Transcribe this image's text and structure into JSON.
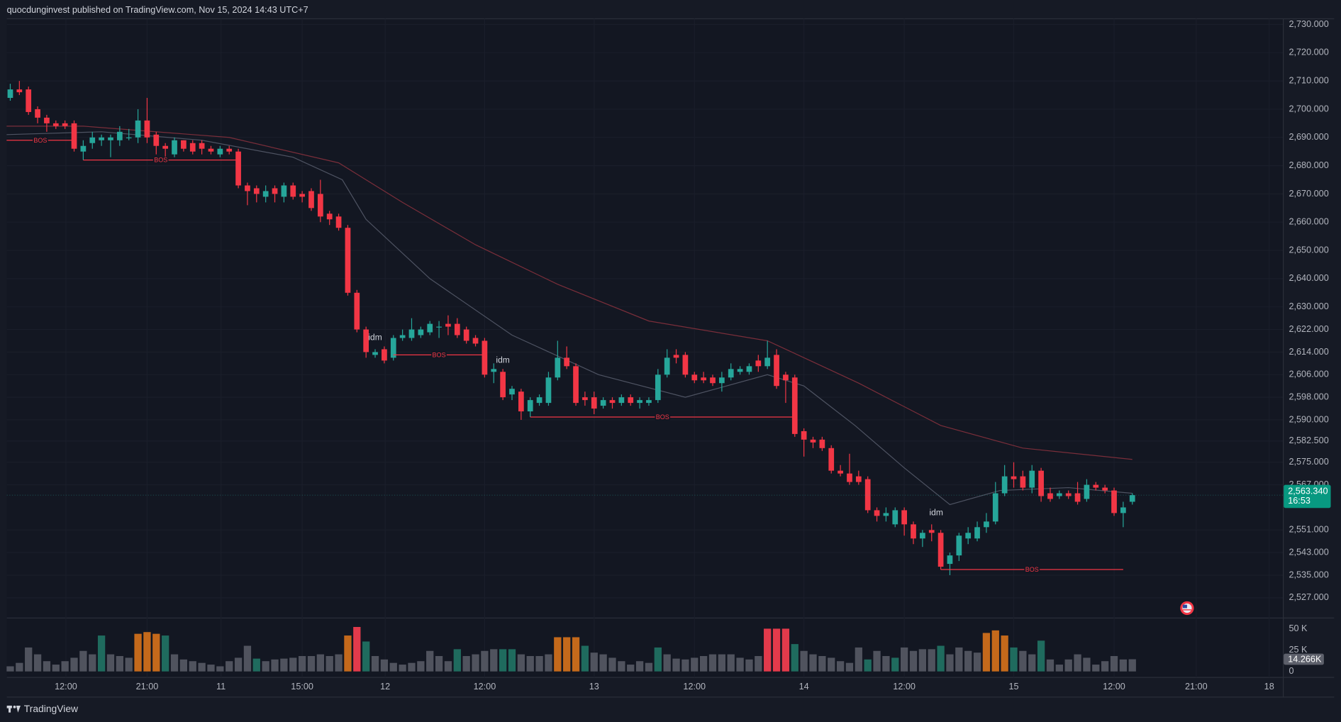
{
  "chart_data": {
    "type": "candlestick",
    "header": "quocdunginvest published on TradingView.com, Nov 15, 2024 14:43 UTC+7",
    "brand": "TradingView",
    "up_color": "#26a69a",
    "down_color": "#f23645",
    "xlim": [
      -0.375,
      139.5
    ],
    "ylim": [
      2520,
      2732
    ],
    "grid": true,
    "yticks": [
      {
        "value": 2730,
        "label": "2,730.000"
      },
      {
        "value": 2720,
        "label": "2,720.000"
      },
      {
        "value": 2710,
        "label": "2,710.000"
      },
      {
        "value": 2700,
        "label": "2,700.000"
      },
      {
        "value": 2690,
        "label": "2,690.000"
      },
      {
        "value": 2680,
        "label": "2,680.000"
      },
      {
        "value": 2670,
        "label": "2,670.000"
      },
      {
        "value": 2660,
        "label": "2,660.000"
      },
      {
        "value": 2650,
        "label": "2,650.000"
      },
      {
        "value": 2640,
        "label": "2,640.000"
      },
      {
        "value": 2630,
        "label": "2,630.000"
      },
      {
        "value": 2622,
        "label": "2,622.000"
      },
      {
        "value": 2614,
        "label": "2,614.000"
      },
      {
        "value": 2606,
        "label": "2,606.000"
      },
      {
        "value": 2598,
        "label": "2,598.000"
      },
      {
        "value": 2590,
        "label": "2,590.000"
      },
      {
        "value": 2582.5,
        "label": "2,582.500"
      },
      {
        "value": 2575,
        "label": "2,575.000"
      },
      {
        "value": 2567,
        "label": "2,567.000"
      },
      {
        "value": 2551,
        "label": "2,551.000"
      },
      {
        "value": 2543,
        "label": "2,543.000"
      },
      {
        "value": 2535,
        "label": "2,535.000"
      },
      {
        "value": 2527,
        "label": "2,527.000"
      }
    ],
    "xticks": [
      {
        "value": 6.1,
        "label": "12:00"
      },
      {
        "value": 15,
        "label": "21:00"
      },
      {
        "value": 23.1,
        "label": "11"
      },
      {
        "value": 32,
        "label": "15:00"
      },
      {
        "value": 41.1,
        "label": "12"
      },
      {
        "value": 52,
        "label": "12:00"
      },
      {
        "value": 64,
        "label": "13"
      },
      {
        "value": 75,
        "label": "12:00"
      },
      {
        "value": 87,
        "label": "14"
      },
      {
        "value": 98,
        "label": "12:00"
      },
      {
        "value": 110,
        "label": "15"
      },
      {
        "value": 121,
        "label": "12:00"
      },
      {
        "value": 130,
        "label": "21:00"
      },
      {
        "value": 138,
        "label": "18"
      }
    ],
    "ohlc": [
      [
        2704,
        2709,
        2703,
        2707
      ],
      [
        2707,
        2710,
        2705,
        2706
      ],
      [
        2707,
        2708,
        2698,
        2699
      ],
      [
        2700,
        2701,
        2695,
        2697
      ],
      [
        2697,
        2698,
        2692,
        2695
      ],
      [
        2695,
        2696,
        2693,
        2694
      ],
      [
        2695,
        2696,
        2693,
        2694
      ],
      [
        2695,
        2696,
        2685,
        2686
      ],
      [
        2685,
        2689,
        2682,
        2687
      ],
      [
        2688,
        2692,
        2686,
        2690
      ],
      [
        2689,
        2691,
        2687,
        2690
      ],
      [
        2689,
        2691,
        2683,
        2690
      ],
      [
        2689,
        2694,
        2687,
        2692
      ],
      [
        2690,
        2693,
        2689,
        2690
      ],
      [
        2690,
        2700,
        2688,
        2696
      ],
      [
        2696,
        2704,
        2688,
        2690
      ],
      [
        2691,
        2692,
        2684,
        2687
      ],
      [
        2687,
        2688,
        2682,
        2686
      ],
      [
        2684,
        2690,
        2683,
        2689
      ],
      [
        2689,
        2689,
        2685,
        2686
      ],
      [
        2688,
        2689,
        2684,
        2685
      ],
      [
        2688,
        2689,
        2684,
        2686
      ],
      [
        2686,
        2687,
        2684,
        2685
      ],
      [
        2684,
        2687,
        2683,
        2686
      ],
      [
        2686,
        2687,
        2684,
        2685
      ],
      [
        2685,
        2686,
        2672,
        2673
      ],
      [
        2673,
        2674,
        2666,
        2671
      ],
      [
        2672,
        2673,
        2667,
        2670
      ],
      [
        2669,
        2673,
        2667,
        2671
      ],
      [
        2672,
        2673,
        2667,
        2670
      ],
      [
        2669,
        2674,
        2667,
        2673
      ],
      [
        2673,
        2674,
        2668,
        2669
      ],
      [
        2670,
        2671,
        2667,
        2669
      ],
      [
        2671,
        2672,
        2664,
        2665
      ],
      [
        2670,
        2675,
        2660,
        2662
      ],
      [
        2663,
        2664,
        2659,
        2661
      ],
      [
        2662,
        2663,
        2657,
        2658
      ],
      [
        2658,
        2659,
        2634,
        2635
      ],
      [
        2635,
        2636,
        2621,
        2622
      ],
      [
        2622,
        2623,
        2612,
        2614
      ],
      [
        2613,
        2615,
        2612,
        2614
      ],
      [
        2615,
        2616,
        2610,
        2611
      ],
      [
        2612,
        2620,
        2611,
        2619
      ],
      [
        2619,
        2622,
        2618,
        2620
      ],
      [
        2619,
        2626,
        2618,
        2622
      ],
      [
        2620,
        2623,
        2619,
        2622
      ],
      [
        2621,
        2625,
        2620,
        2624
      ],
      [
        2623,
        2625,
        2619,
        2623
      ],
      [
        2624,
        2627,
        2620,
        2623
      ],
      [
        2624,
        2626,
        2619,
        2620
      ],
      [
        2622,
        2623,
        2617,
        2618
      ],
      [
        2619,
        2620,
        2616,
        2617
      ],
      [
        2618,
        2619,
        2605,
        2606
      ],
      [
        2607,
        2610,
        2603,
        2608
      ],
      [
        2607,
        2608,
        2597,
        2598
      ],
      [
        2599,
        2602,
        2597,
        2601
      ],
      [
        2600,
        2601,
        2590,
        2593
      ],
      [
        2593,
        2598,
        2591,
        2597
      ],
      [
        2596,
        2599,
        2595,
        2598
      ],
      [
        2596,
        2607,
        2595,
        2605
      ],
      [
        2605,
        2618,
        2604,
        2612
      ],
      [
        2612,
        2616,
        2608,
        2609
      ],
      [
        2609,
        2610,
        2595,
        2596
      ],
      [
        2598,
        2600,
        2595,
        2597
      ],
      [
        2598,
        2600,
        2592,
        2594
      ],
      [
        2595,
        2598,
        2594,
        2597
      ],
      [
        2597,
        2598,
        2594,
        2596
      ],
      [
        2596,
        2599,
        2595,
        2598
      ],
      [
        2598,
        2599,
        2595,
        2596
      ],
      [
        2596,
        2598,
        2594,
        2597
      ],
      [
        2596,
        2598,
        2595,
        2597
      ],
      [
        2597,
        2608,
        2596,
        2606
      ],
      [
        2606,
        2615,
        2605,
        2612
      ],
      [
        2613,
        2615,
        2610,
        2612
      ],
      [
        2613,
        2614,
        2605,
        2606
      ],
      [
        2606,
        2607,
        2603,
        2604
      ],
      [
        2605,
        2607,
        2603,
        2604
      ],
      [
        2605,
        2606,
        2602,
        2603
      ],
      [
        2603,
        2607,
        2600,
        2605
      ],
      [
        2605,
        2610,
        2604,
        2608
      ],
      [
        2607,
        2609,
        2606,
        2608
      ],
      [
        2607,
        2610,
        2606,
        2609
      ],
      [
        2611,
        2613,
        2607,
        2609
      ],
      [
        2609,
        2618,
        2608,
        2612
      ],
      [
        2613,
        2615,
        2601,
        2602
      ],
      [
        2606,
        2607,
        2596,
        2604
      ],
      [
        2605,
        2606,
        2584,
        2585
      ],
      [
        2586,
        2587,
        2577,
        2583
      ],
      [
        2583,
        2584,
        2580,
        2582
      ],
      [
        2583,
        2584,
        2579,
        2580
      ],
      [
        2580,
        2581,
        2571,
        2572
      ],
      [
        2572,
        2574,
        2570,
        2571
      ],
      [
        2571,
        2578,
        2567,
        2568
      ],
      [
        2570,
        2572,
        2567,
        2568
      ],
      [
        2569,
        2570,
        2557,
        2558
      ],
      [
        2558,
        2559,
        2554,
        2556
      ],
      [
        2556,
        2559,
        2554,
        2557
      ],
      [
        2553,
        2559,
        2552,
        2558
      ],
      [
        2558,
        2559,
        2549,
        2553
      ],
      [
        2553,
        2554,
        2546,
        2548
      ],
      [
        2548,
        2551,
        2545,
        2550
      ],
      [
        2551,
        2553,
        2547,
        2550
      ],
      [
        2550,
        2551,
        2537,
        2538
      ],
      [
        2539,
        2543,
        2535,
        2542
      ],
      [
        2542,
        2550,
        2540,
        2549
      ],
      [
        2548,
        2552,
        2546,
        2550
      ],
      [
        2548,
        2554,
        2547,
        2552
      ],
      [
        2552,
        2557,
        2550,
        2554
      ],
      [
        2554,
        2568,
        2553,
        2564
      ],
      [
        2564,
        2574,
        2563,
        2570
      ],
      [
        2570,
        2575,
        2566,
        2569
      ],
      [
        2570,
        2572,
        2565,
        2566
      ],
      [
        2566,
        2574,
        2564,
        2572
      ],
      [
        2572,
        2573,
        2561,
        2563
      ],
      [
        2564,
        2566,
        2561,
        2562
      ],
      [
        2563,
        2565,
        2562,
        2564
      ],
      [
        2564,
        2565,
        2562,
        2563
      ],
      [
        2564,
        2568,
        2560,
        2561
      ],
      [
        2562,
        2569,
        2561,
        2567
      ],
      [
        2567,
        2568,
        2565,
        2566
      ],
      [
        2566,
        2567,
        2564,
        2565
      ],
      [
        2565,
        2566,
        2556,
        2557
      ],
      [
        2557,
        2561,
        2552,
        2559
      ],
      [
        2561,
        2564,
        2560,
        2563.34
      ]
    ],
    "overlays": [
      {
        "color": "#7a2e3a",
        "x": [
          -0.4,
          8,
          24,
          36,
          43,
          51,
          60,
          70,
          83,
          93,
          102,
          111,
          123
        ],
        "values": [
          2694,
          2694,
          2690,
          2681,
          2667,
          2652,
          2638,
          2625,
          2618,
          2603,
          2588,
          2580,
          2576
        ]
      },
      {
        "color": "#4e5362",
        "x": [
          -0.4,
          10,
          21,
          31,
          36.4,
          39,
          46,
          55,
          64.5,
          74,
          83,
          87,
          92.6,
          98,
          103,
          108.5,
          116,
          123
        ],
        "values": [
          2691,
          2692,
          2689,
          2683,
          2675,
          2661,
          2640,
          2620,
          2606,
          2598,
          2606,
          2602,
          2588,
          2573,
          2560,
          2565,
          2566,
          2564
        ]
      }
    ],
    "annotations": [
      {
        "text": "BOS",
        "price": 2689,
        "x": [
          -0.4,
          7
        ]
      },
      {
        "text": "BOS",
        "price": 2682,
        "x": [
          8,
          25
        ]
      },
      {
        "text": "BOS",
        "price": 2613,
        "x": [
          42,
          52
        ]
      },
      {
        "text": "BOS",
        "price": 2591,
        "x": [
          57,
          86
        ]
      },
      {
        "text": "BOS",
        "price": 2537,
        "x": [
          102,
          122
        ]
      },
      {
        "text": "idm",
        "price": 2619,
        "x": [
          40
        ]
      },
      {
        "text": "idm",
        "price": 2611,
        "x": [
          54
        ]
      },
      {
        "text": "idm",
        "price": 2557,
        "x": [
          101.5
        ]
      }
    ],
    "annotation_color": "#f23645",
    "last_price": {
      "value": 2563.34,
      "label": "2,563.340"
    },
    "countdown": "16:53",
    "volume": [
      6,
      10,
      28,
      20,
      12,
      8,
      12,
      16,
      24,
      20,
      42,
      20,
      18,
      16,
      44,
      46,
      44,
      42,
      20,
      14,
      12,
      10,
      8,
      6,
      12,
      16,
      30,
      15,
      12,
      14,
      15,
      16,
      18,
      18,
      20,
      18,
      20,
      42,
      52,
      35,
      18,
      14,
      10,
      8,
      10,
      12,
      24,
      18,
      12,
      26,
      18,
      20,
      24,
      26,
      26,
      26,
      20,
      18,
      18,
      20,
      40,
      40,
      40,
      30,
      22,
      20,
      16,
      12,
      8,
      12,
      10,
      28,
      20,
      15,
      14,
      16,
      18,
      20,
      20,
      20,
      16,
      14,
      18,
      50,
      50,
      50,
      32,
      24,
      20,
      18,
      16,
      12,
      10,
      28,
      14,
      24,
      18,
      16,
      28,
      24,
      26,
      26,
      30,
      20,
      28,
      24,
      22,
      45,
      48,
      42,
      28,
      24,
      20,
      36,
      14,
      8,
      14,
      20,
      16,
      8,
      12,
      18,
      14,
      14.266
    ],
    "volume_colors": [
      "#50535e",
      "#50535e",
      "#50535e",
      "#50535e",
      "#50535e",
      "#50535e",
      "#50535e",
      "#50535e",
      "#50535e",
      "#50535e",
      "#1f6b5e",
      "#50535e",
      "#50535e",
      "#50535e",
      "#c4691b",
      "#c4691b",
      "#c4691b",
      "#1f6b5e",
      "#50535e",
      "#50535e",
      "#50535e",
      "#50535e",
      "#50535e",
      "#50535e",
      "#50535e",
      "#50535e",
      "#50535e",
      "#1f6b5e",
      "#50535e",
      "#50535e",
      "#50535e",
      "#50535e",
      "#50535e",
      "#50535e",
      "#50535e",
      "#50535e",
      "#50535e",
      "#c4691b",
      "#e23a4b",
      "#1f6b5e",
      "#50535e",
      "#50535e",
      "#50535e",
      "#50535e",
      "#50535e",
      "#50535e",
      "#50535e",
      "#50535e",
      "#50535e",
      "#1f6b5e",
      "#50535e",
      "#50535e",
      "#50535e",
      "#50535e",
      "#1f6b5e",
      "#1f6b5e",
      "#50535e",
      "#50535e",
      "#50535e",
      "#50535e",
      "#c4691b",
      "#c4691b",
      "#c4691b",
      "#1f6b5e",
      "#50535e",
      "#50535e",
      "#50535e",
      "#50535e",
      "#50535e",
      "#50535e",
      "#50535e",
      "#1f6b5e",
      "#50535e",
      "#50535e",
      "#50535e",
      "#50535e",
      "#50535e",
      "#50535e",
      "#50535e",
      "#50535e",
      "#50535e",
      "#50535e",
      "#50535e",
      "#e23a4b",
      "#e23a4b",
      "#e23a4b",
      "#1f6b5e",
      "#50535e",
      "#50535e",
      "#50535e",
      "#50535e",
      "#50535e",
      "#50535e",
      "#50535e",
      "#1f6b5e",
      "#50535e",
      "#50535e",
      "#1f6b5e",
      "#50535e",
      "#50535e",
      "#50535e",
      "#50535e",
      "#1f6b5e",
      "#50535e",
      "#50535e",
      "#50535e",
      "#50535e",
      "#c4691b",
      "#c4691b",
      "#c4691b",
      "#1f6b5e",
      "#50535e",
      "#50535e",
      "#1f6b5e",
      "#50535e",
      "#50535e",
      "#50535e",
      "#50535e",
      "#50535e",
      "#50535e",
      "#50535e",
      "#50535e",
      "#50535e",
      "#50535e"
    ],
    "volume_ylim": [
      0,
      62
    ],
    "volume_ticks": [
      {
        "value": 50,
        "label": "50 K"
      },
      {
        "value": 25,
        "label": "25 K"
      },
      0
    ],
    "last_volume": {
      "value": 14.266,
      "label": "14.266K"
    }
  }
}
